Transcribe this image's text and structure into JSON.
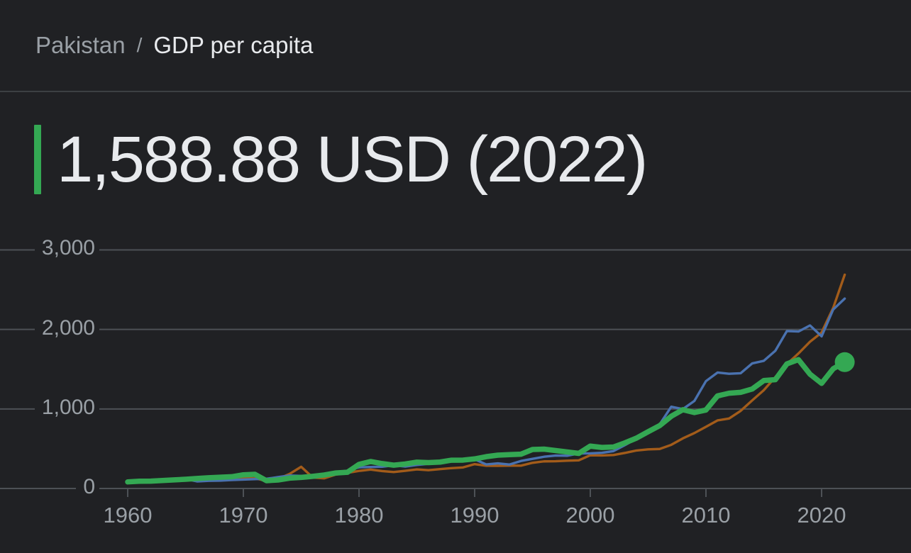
{
  "colors": {
    "background": "#202124",
    "divider": "#3c4043",
    "text_primary": "#e8eaed",
    "text_secondary": "#9aa0a6",
    "grid": "#4d5156",
    "accent_green": "#34a853",
    "series_green": "#34a853",
    "series_blue": "#4a72b0",
    "series_brown": "#a35c1a"
  },
  "breadcrumb": {
    "country": "Pakistan",
    "separator": "/",
    "metric": "GDP per capita"
  },
  "headline": {
    "value": "1,588.88 USD (2022)"
  },
  "chart_data": {
    "type": "line",
    "title": "GDP per capita",
    "unit": "USD",
    "xlabel": "",
    "ylabel": "",
    "xlim": [
      1960,
      2022
    ],
    "ylim": [
      0,
      3000
    ],
    "grid": "horizontal",
    "legend": "none",
    "x": [
      1960,
      1961,
      1962,
      1963,
      1964,
      1965,
      1966,
      1967,
      1968,
      1969,
      1970,
      1971,
      1972,
      1973,
      1974,
      1975,
      1976,
      1977,
      1978,
      1979,
      1980,
      1981,
      1982,
      1983,
      1984,
      1985,
      1986,
      1987,
      1988,
      1989,
      1990,
      1991,
      1992,
      1993,
      1994,
      1995,
      1996,
      1997,
      1998,
      1999,
      2000,
      2001,
      2002,
      2003,
      2004,
      2005,
      2006,
      2007,
      2008,
      2009,
      2010,
      2011,
      2012,
      2013,
      2014,
      2015,
      2016,
      2017,
      2018,
      2019,
      2020,
      2021,
      2022
    ],
    "series": [
      {
        "name": "Pakistan",
        "color_key": "series_green",
        "highlighted": true,
        "values": [
          83,
          91,
          93,
          100,
          108,
          116,
          126,
          135,
          141,
          148,
          172,
          178,
          98,
          107,
          130,
          139,
          153,
          170,
          195,
          204,
          303,
          339,
          313,
          293,
          308,
          331,
          325,
          332,
          356,
          357,
          372,
          400,
          419,
          426,
          431,
          490,
          495,
          477,
          459,
          441,
          533,
          516,
          521,
          574,
          634,
          714,
          791,
          908,
          991,
          955,
          987,
          1164,
          1198,
          1209,
          1251,
          1357,
          1368,
          1567,
          1620,
          1437,
          1322,
          1505,
          1588.88
        ]
      },
      {
        "name": "comparison (blue line)",
        "color_key": "series_blue",
        "highlighted": false,
        "values": [
          82,
          85,
          89,
          101,
          115,
          119,
          89,
          96,
          99,
          107,
          112,
          118,
          122,
          143,
          163,
          158,
          161,
          186,
          205,
          224,
          266,
          270,
          274,
          291,
          276,
          296,
          310,
          340,
          354,
          346,
          367,
          303,
          316,
          301,
          346,
          373,
          399,
          414,
          412,
          441,
          442,
          449,
          470,
          546,
          627,
          710,
          806,
          1028,
          998,
          1101,
          1350,
          1458,
          1443,
          1449,
          1573,
          1605,
          1732,
          1980,
          1974,
          2050,
          1913,
          2250,
          2388
        ]
      },
      {
        "name": "comparison (brown line)",
        "color_key": "series_brown",
        "highlighted": false,
        "values": [
          89,
          95,
          99,
          103,
          104,
          109,
          113,
          122,
          126,
          131,
          134,
          128,
          94,
          121,
          183,
          273,
          138,
          128,
          176,
          197,
          221,
          238,
          219,
          207,
          222,
          240,
          230,
          243,
          256,
          265,
          306,
          286,
          285,
          287,
          287,
          323,
          341,
          343,
          349,
          354,
          418,
          415,
          421,
          447,
          478,
          492,
          497,
          549,
          630,
          697,
          776,
          856,
          880,
          976,
          1108,
          1236,
          1401,
          1564,
          1698,
          1846,
          1961,
          2270,
          2688
        ]
      }
    ],
    "yticks": [
      {
        "value": 0,
        "label": "0"
      },
      {
        "value": 1000,
        "label": "1,000"
      },
      {
        "value": 2000,
        "label": "2,000"
      },
      {
        "value": 3000,
        "label": "3,000"
      }
    ],
    "xticks": [
      {
        "value": 1960,
        "label": "1960"
      },
      {
        "value": 1970,
        "label": "1970"
      },
      {
        "value": 1980,
        "label": "1980"
      },
      {
        "value": 1990,
        "label": "1990"
      },
      {
        "value": 2000,
        "label": "2000"
      },
      {
        "value": 2010,
        "label": "2010"
      },
      {
        "value": 2020,
        "label": "2020"
      }
    ],
    "end_marker": {
      "series": "Pakistan",
      "x": 2022,
      "value": 1588.88
    }
  }
}
